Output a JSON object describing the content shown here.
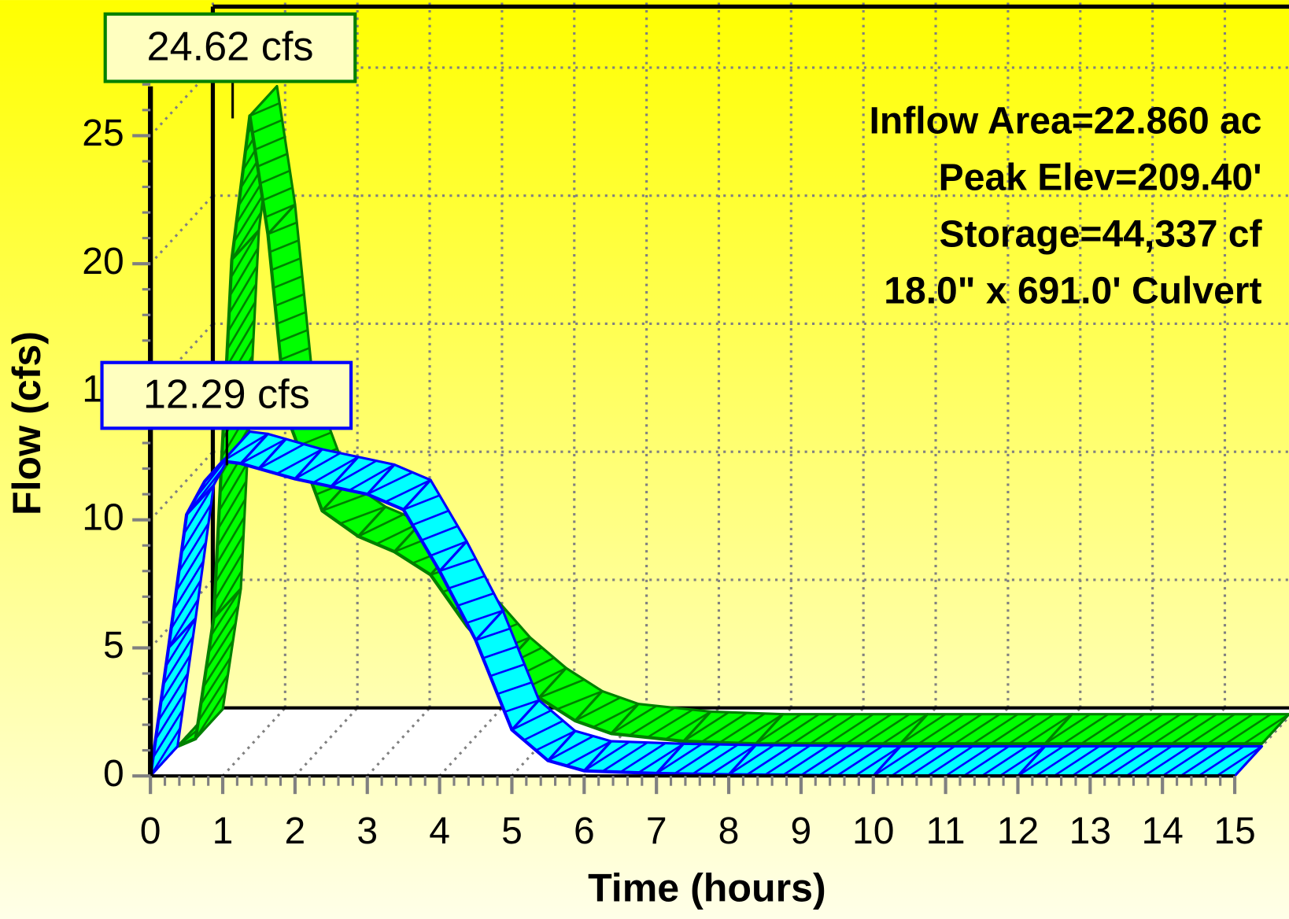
{
  "chart_data": {
    "type": "line",
    "xlabel": "Time  (hours)",
    "ylabel": "Flow  (cfs)",
    "x": [
      0,
      0.25,
      0.5,
      0.75,
      1,
      1.25,
      1.5,
      2,
      2.5,
      3,
      3.5,
      4,
      4.5,
      5,
      5.5,
      6,
      7,
      8,
      10,
      12,
      15
    ],
    "series": [
      {
        "color": "#00ff00",
        "edge": "#008000",
        "values": [
          0,
          0.3,
          5,
          19,
          24.62,
          20,
          13,
          9.2,
          8.2,
          7.6,
          6.7,
          4.7,
          3.1,
          1.9,
          1.0,
          0.5,
          0.2,
          0.1,
          0.1,
          0.1,
          0.1
        ]
      },
      {
        "color": "#00ffff",
        "edge": "#0000ff",
        "values": [
          0,
          5,
          10.2,
          11.5,
          12.29,
          12.2,
          12.0,
          11.6,
          11.3,
          11.0,
          10.4,
          8.0,
          5.3,
          1.8,
          0.6,
          0.2,
          0.1,
          0.05,
          0,
          0,
          0
        ]
      }
    ],
    "annotations": [
      "24.62 cfs",
      "12.29 cfs"
    ],
    "info": [
      "Inflow  Area=22.860 ac",
      "Peak Elev=209.40'",
      "Storage=44,337 cf",
      "18.0\" x 691.0' Culvert"
    ],
    "xlim": [
      0,
      15
    ],
    "xticks": [
      0,
      1,
      2,
      3,
      4,
      5,
      6,
      7,
      8,
      9,
      10,
      11,
      12,
      13,
      14,
      15
    ],
    "ylim": [
      0,
      27.7
    ],
    "yticks": [
      0,
      5,
      10,
      15,
      20,
      25
    ],
    "grid": true
  }
}
